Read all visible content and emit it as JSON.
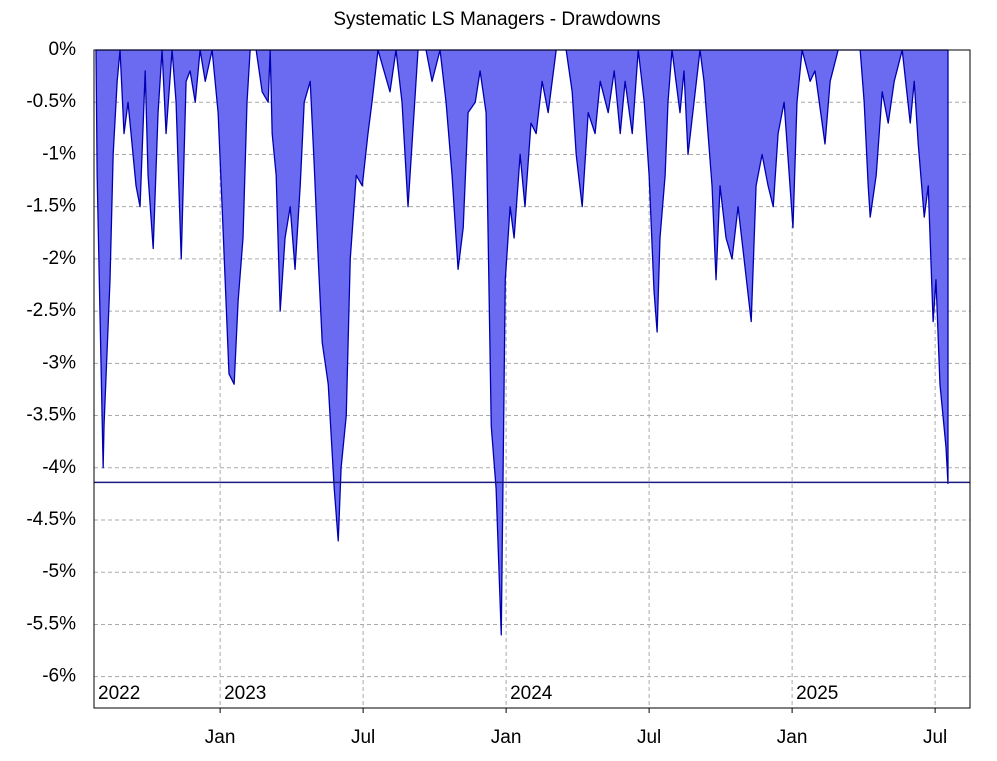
{
  "chart_data": {
    "type": "area",
    "title": "Systematic LS Managers - Drawdowns",
    "x": [
      2022.566,
      2022.57,
      2022.591,
      2022.594,
      2022.615,
      2022.626,
      2022.64,
      2022.65,
      2022.664,
      2022.678,
      2022.706,
      2022.72,
      2022.738,
      2022.748,
      2022.766,
      2022.783,
      2022.797,
      2022.811,
      2022.832,
      2022.846,
      2022.864,
      2022.881,
      2022.895,
      2022.913,
      2022.93,
      2022.948,
      2022.972,
      2022.993,
      2023.007,
      2023.031,
      2023.049,
      2023.063,
      2023.08,
      2023.094,
      2023.105,
      2023.126,
      2023.147,
      2023.168,
      2023.175,
      2023.182,
      2023.196,
      2023.21,
      2023.227,
      2023.245,
      2023.262,
      2023.28,
      2023.294,
      2023.315,
      2023.329,
      2023.343,
      2023.357,
      2023.378,
      2023.399,
      2023.413,
      2023.423,
      2023.441,
      2023.455,
      2023.476,
      2023.497,
      2023.517,
      2023.531,
      2023.552,
      2023.573,
      2023.594,
      2023.615,
      2023.636,
      2023.657,
      2023.678,
      2023.692,
      2023.72,
      2023.741,
      2023.769,
      2023.79,
      2023.811,
      2023.832,
      2023.85,
      2023.867,
      2023.892,
      2023.909,
      2023.93,
      2023.948,
      2023.965,
      2023.983,
      2023.997,
      2024.014,
      2024.028,
      2024.049,
      2024.066,
      2024.087,
      2024.105,
      2024.126,
      2024.147,
      2024.175,
      2024.21,
      2024.231,
      2024.245,
      2024.266,
      2024.287,
      2024.311,
      2024.329,
      2024.357,
      2024.378,
      2024.399,
      2024.416,
      2024.441,
      2024.462,
      2024.483,
      2024.5,
      2024.517,
      2024.528,
      2024.538,
      2024.556,
      2024.566,
      2024.58,
      2024.608,
      2024.622,
      2024.636,
      2024.657,
      2024.678,
      2024.692,
      2024.706,
      2024.72,
      2024.734,
      2024.748,
      2024.769,
      2024.79,
      2024.811,
      2024.832,
      2024.857,
      2024.874,
      2024.895,
      2024.916,
      2024.934,
      2024.951,
      2024.972,
      2025.003,
      2025.017,
      2025.035,
      2025.063,
      2025.08,
      2025.115,
      2025.133,
      2025.161,
      2025.238,
      2025.252,
      2025.266,
      2025.273,
      2025.294,
      2025.315,
      2025.336,
      2025.357,
      2025.385,
      2025.413,
      2025.427,
      2025.441,
      2025.462,
      2025.476,
      2025.493,
      2025.503,
      2025.517,
      2025.531,
      2025.538,
      2025.545
    ],
    "values": [
      0,
      -1.2,
      -4.0,
      -3.6,
      -2.2,
      -1.0,
      -0.3,
      0,
      -0.8,
      -0.5,
      -1.3,
      -1.5,
      -0.2,
      -1.2,
      -1.9,
      -0.6,
      0,
      -0.8,
      0,
      -0.5,
      -2.0,
      -0.3,
      -0.2,
      -0.5,
      0,
      -0.3,
      0,
      -0.6,
      -1.5,
      -3.1,
      -3.2,
      -2.4,
      -1.8,
      -0.5,
      0,
      0,
      -0.4,
      -0.5,
      0,
      -0.8,
      -1.2,
      -2.5,
      -1.8,
      -1.5,
      -2.1,
      -1.3,
      -0.5,
      -0.3,
      -1.1,
      -2.0,
      -2.8,
      -3.2,
      -4.2,
      -4.7,
      -4.0,
      -3.5,
      -2.0,
      -1.2,
      -1.3,
      -0.8,
      -0.5,
      0,
      -0.2,
      -0.4,
      0,
      -0.5,
      -1.5,
      -0.6,
      0,
      0,
      -0.3,
      0,
      -0.5,
      -1.2,
      -2.1,
      -1.7,
      -0.6,
      -0.5,
      -0.2,
      -0.6,
      -3.6,
      -4.2,
      -5.6,
      -2.2,
      -1.5,
      -1.8,
      -1.0,
      -1.5,
      -0.7,
      -0.8,
      -0.3,
      -0.6,
      0,
      0,
      -0.4,
      -1.0,
      -1.5,
      -0.6,
      -0.8,
      -0.3,
      -0.6,
      -0.2,
      -0.8,
      -0.3,
      -0.8,
      0,
      -0.5,
      -1.2,
      -2.3,
      -2.7,
      -1.8,
      -1.2,
      -0.5,
      0,
      -0.6,
      -0.2,
      -1.0,
      -0.5,
      0,
      -0.3,
      -0.8,
      -1.3,
      -2.2,
      -1.3,
      -1.8,
      -2.0,
      -1.5,
      -2.0,
      -2.6,
      -1.3,
      -1.0,
      -1.3,
      -1.5,
      -0.8,
      -0.5,
      -1.7,
      -0.5,
      0,
      -0.3,
      -0.2,
      -0.9,
      -0.3,
      0,
      0,
      -0.5,
      -1.3,
      -1.6,
      -1.2,
      -0.4,
      -0.7,
      -0.3,
      0,
      -0.7,
      -0.3,
      -0.9,
      -1.6,
      -1.3,
      -2.6,
      -2.2,
      -3.2,
      -3.6,
      -3.8,
      -4.15
    ],
    "color": "#6b6bf2",
    "line_color": "#0000b0",
    "hline": -4.14,
    "hline_color": "#1a1a80",
    "xlim": [
      2022.559,
      2025.622
    ],
    "xticks": [
      {
        "value": 2023,
        "label": "Jan"
      },
      {
        "value": 2023.5,
        "label": "Jul"
      },
      {
        "value": 2024,
        "label": "Jan"
      },
      {
        "value": 2024.5,
        "label": "Jul"
      },
      {
        "value": 2025,
        "label": "Jan"
      },
      {
        "value": 2025.5,
        "label": "Jul"
      }
    ],
    "year_labels": [
      {
        "value": 2022.559,
        "label": "2022"
      },
      {
        "value": 2023,
        "label": "2023"
      },
      {
        "value": 2024,
        "label": "2024"
      },
      {
        "value": 2025,
        "label": "2025"
      }
    ],
    "ylim": [
      -6.3,
      0
    ],
    "yticks": [
      {
        "value": 0,
        "label": "0%"
      },
      {
        "value": -0.5,
        "label": "-0.5%"
      },
      {
        "value": -1,
        "label": "-1%"
      },
      {
        "value": -1.5,
        "label": "-1.5%"
      },
      {
        "value": -2,
        "label": "-2%"
      },
      {
        "value": -2.5,
        "label": "-2.5%"
      },
      {
        "value": -3,
        "label": "-3%"
      },
      {
        "value": -3.5,
        "label": "-3.5%"
      },
      {
        "value": -4,
        "label": "-4%"
      },
      {
        "value": -4.5,
        "label": "-4.5%"
      },
      {
        "value": -5,
        "label": "-5%"
      },
      {
        "value": -5.5,
        "label": "-5.5%"
      },
      {
        "value": -6,
        "label": "-6%"
      }
    ],
    "grid": true
  }
}
